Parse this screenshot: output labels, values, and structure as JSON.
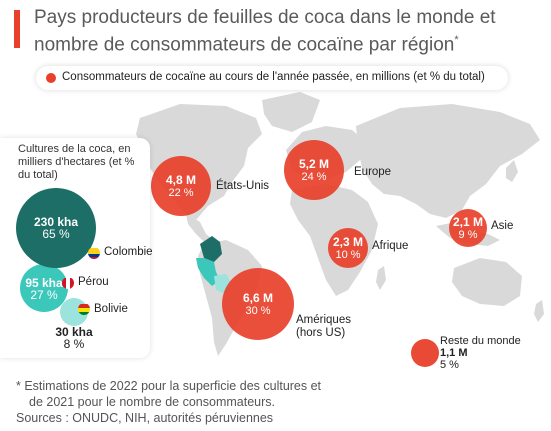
{
  "title": "Pays producteurs de feuilles de coca dans le monde et nombre de consommateurs de cocaïne par région",
  "title_asterisk": "*",
  "legend": "Consommateurs de cocaïne au cours de l'année passée, en millions (et % du total)",
  "regions": [
    {
      "label": "États-Unis",
      "value": "4,8 M",
      "pct": "22 %"
    },
    {
      "label": "Europe",
      "value": "5,2 M",
      "pct": "24 %"
    },
    {
      "label": "Afrique",
      "value": "2,3 M",
      "pct": "10 %"
    },
    {
      "label": "Asie",
      "value": "2,1 M",
      "pct": "9 %"
    },
    {
      "label": "Amériques (hors US)",
      "label_line1": "Amériques",
      "label_line2": "(hors US)",
      "value": "6,6 M",
      "pct": "30 %"
    },
    {
      "label": "Reste du monde",
      "value": "1,1 M",
      "pct": "5 %"
    }
  ],
  "panel": {
    "title": "Cultures de la coca, en milliers d'hectares (et % du total)",
    "countries": [
      {
        "name": "Colombie",
        "value": "230 kha",
        "pct": "65 %"
      },
      {
        "name": "Pérou",
        "value": "95 kha",
        "pct": "27 %"
      },
      {
        "name": "Bolivie",
        "value": "30 kha",
        "pct": "8 %"
      }
    ]
  },
  "footnote": {
    "line1": "* Estimations de 2022 pour la superficie des cultures et",
    "line2": "de 2021 pour le nombre de consommateurs.",
    "sources": "Sources : ONUDC, NIH, autorités péruviennes"
  },
  "colors": {
    "accent": "#e8402b",
    "land": "#d9d9d9",
    "colombia": "#1c6e66",
    "peru": "#3cc7bb",
    "bolivia": "#9be3dc"
  }
}
